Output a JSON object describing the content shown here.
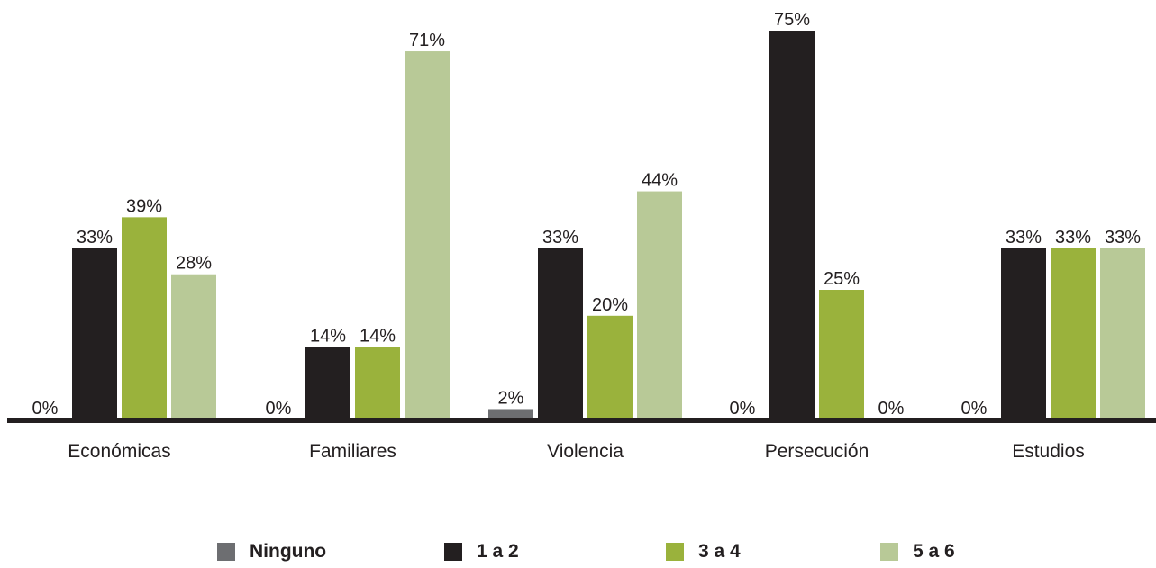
{
  "chart_data": {
    "type": "bar",
    "title": "",
    "xlabel": "",
    "ylabel": "",
    "ylim": [
      0,
      75
    ],
    "grid": false,
    "legend_position": "bottom",
    "categories": [
      "Económicas",
      "Familiares",
      "Violencia",
      "Persecución",
      "Estudios"
    ],
    "series": [
      {
        "name": "Ninguno",
        "color": "#6d6e71",
        "values": [
          0,
          0,
          2,
          0,
          0
        ],
        "labels": [
          "0%",
          "0%",
          "2%",
          "0%",
          "0%"
        ]
      },
      {
        "name": "1 a 2",
        "color": "#231f20",
        "values": [
          33,
          14,
          33,
          75,
          33
        ],
        "labels": [
          "33%",
          "14%",
          "33%",
          "75%",
          "33%"
        ]
      },
      {
        "name": "3 a 4",
        "color": "#9ab23c",
        "values": [
          39,
          14,
          20,
          25,
          33
        ],
        "labels": [
          "39%",
          "14%",
          "20%",
          "25%",
          "33%"
        ]
      },
      {
        "name": "5 a 6",
        "color": "#b8c997",
        "values": [
          28,
          71,
          44,
          0,
          33
        ],
        "labels": [
          "28%",
          "71%",
          "44%",
          "0%",
          "33%"
        ]
      }
    ],
    "axis_color": "#231f20"
  }
}
